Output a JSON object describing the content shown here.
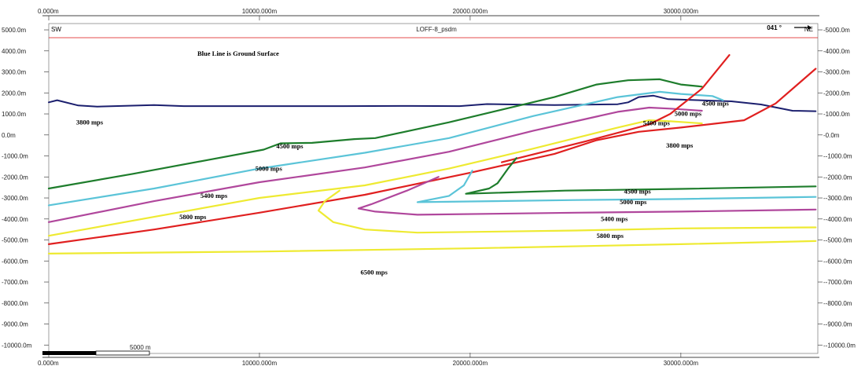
{
  "chart_data": {
    "type": "line",
    "title": "LOFF-8_psdm",
    "left_direction": "SW",
    "right_direction": "NE",
    "azimuth": "041 °",
    "note": "Blue Line is Ground Surface",
    "scalebar_label": "5000 m",
    "xlim": [
      0,
      36500
    ],
    "ylim": [
      -10400,
      5300
    ],
    "x_ticks": [
      {
        "value": 0,
        "label": "0.000m"
      },
      {
        "value": 10000,
        "label": "10000.000m"
      },
      {
        "value": 20000,
        "label": "20000.000m"
      },
      {
        "value": 30000,
        "label": "30000.000m"
      }
    ],
    "y_ticks_left": [
      {
        "value": 5000,
        "label": "5000.0m"
      },
      {
        "value": 4000,
        "label": "4000.0m"
      },
      {
        "value": 3000,
        "label": "3000.0m"
      },
      {
        "value": 2000,
        "label": "2000.0m"
      },
      {
        "value": 1000,
        "label": "1000.0m"
      },
      {
        "value": 0,
        "label": "0.0m"
      },
      {
        "value": -1000,
        "label": "-1000.0m"
      },
      {
        "value": -2000,
        "label": "-2000.0m"
      },
      {
        "value": -3000,
        "label": "-3000.0m"
      },
      {
        "value": -4000,
        "label": "-4000.0m"
      },
      {
        "value": -5000,
        "label": "-5000.0m"
      },
      {
        "value": -6000,
        "label": "-6000.0m"
      },
      {
        "value": -7000,
        "label": "-7000.0m"
      },
      {
        "value": -8000,
        "label": "-8000.0m"
      },
      {
        "value": -9000,
        "label": "-9000.0m"
      },
      {
        "value": -10000,
        "label": "-10000.0m"
      }
    ],
    "y_ticks_right": [
      {
        "value": 5000,
        "label": "-5000.0m"
      },
      {
        "value": 4000,
        "label": "-4000.0m"
      },
      {
        "value": 3000,
        "label": "-3000.0m"
      },
      {
        "value": 2000,
        "label": "-2000.0m"
      },
      {
        "value": 1000,
        "label": "-1000.0m"
      },
      {
        "value": 0,
        "label": "-0.0m"
      },
      {
        "value": -1000,
        "label": "--1000.0m"
      },
      {
        "value": -2000,
        "label": "--2000.0m"
      },
      {
        "value": -3000,
        "label": "--3000.0m"
      },
      {
        "value": -4000,
        "label": "--4000.0m"
      },
      {
        "value": -5000,
        "label": "--5000.0m"
      },
      {
        "value": -6000,
        "label": "--6000.0m"
      },
      {
        "value": -7000,
        "label": "--7000.0m"
      },
      {
        "value": -8000,
        "label": "--8000.0m"
      },
      {
        "value": -9000,
        "label": "--9000.0m"
      },
      {
        "value": -10000,
        "label": "--10000.0m"
      }
    ],
    "series": [
      {
        "key": "ground-surface",
        "color": "#1b1f6e",
        "points": [
          [
            0,
            1550
          ],
          [
            400,
            1650
          ],
          [
            1400,
            1400
          ],
          [
            2300,
            1350
          ],
          [
            5000,
            1420
          ],
          [
            6400,
            1370
          ],
          [
            10000,
            1370
          ],
          [
            14000,
            1370
          ],
          [
            17200,
            1380
          ],
          [
            19500,
            1370
          ],
          [
            20800,
            1470
          ],
          [
            24000,
            1420
          ],
          [
            27000,
            1460
          ],
          [
            27500,
            1550
          ],
          [
            28000,
            1800
          ],
          [
            28700,
            1870
          ],
          [
            29400,
            1700
          ],
          [
            32400,
            1600
          ],
          [
            33800,
            1450
          ],
          [
            35300,
            1150
          ],
          [
            36400,
            1130
          ]
        ]
      },
      {
        "key": "green-upper",
        "color": "#1e7d2c",
        "points": [
          [
            0,
            -2550
          ],
          [
            4000,
            -1850
          ],
          [
            7500,
            -1200
          ],
          [
            10200,
            -700
          ],
          [
            11000,
            -400
          ],
          [
            12500,
            -380
          ],
          [
            14500,
            -200
          ],
          [
            15500,
            -150
          ],
          [
            19000,
            600
          ],
          [
            24000,
            1800
          ],
          [
            26000,
            2400
          ],
          [
            27500,
            2600
          ],
          [
            29000,
            2650
          ],
          [
            30000,
            2400
          ],
          [
            31000,
            2300
          ]
        ]
      },
      {
        "key": "cyan-upper",
        "color": "#5bc4d8",
        "points": [
          [
            0,
            -3350
          ],
          [
            5000,
            -2550
          ],
          [
            10000,
            -1600
          ],
          [
            15000,
            -850
          ],
          [
            19000,
            -150
          ],
          [
            23000,
            900
          ],
          [
            27000,
            1800
          ],
          [
            29000,
            2050
          ],
          [
            30000,
            1950
          ],
          [
            31500,
            1850
          ],
          [
            32000,
            1650
          ]
        ]
      },
      {
        "key": "magenta-upper",
        "color": "#b0479c",
        "points": [
          [
            0,
            -4150
          ],
          [
            5000,
            -3150
          ],
          [
            10000,
            -2250
          ],
          [
            15000,
            -1550
          ],
          [
            19000,
            -800
          ],
          [
            23000,
            200
          ],
          [
            27000,
            1100
          ],
          [
            28500,
            1300
          ],
          [
            29500,
            1250
          ],
          [
            31000,
            1150
          ]
        ]
      },
      {
        "key": "yellow-upper",
        "color": "#eeea32",
        "points": [
          [
            0,
            -4800
          ],
          [
            5000,
            -3900
          ],
          [
            10000,
            -3000
          ],
          [
            15000,
            -2400
          ],
          [
            19000,
            -1600
          ],
          [
            23000,
            -650
          ],
          [
            27000,
            350
          ],
          [
            28500,
            700
          ],
          [
            29500,
            650
          ],
          [
            31000,
            550
          ]
        ]
      },
      {
        "key": "red-upper",
        "color": "#e02020",
        "points": [
          [
            0,
            -5200
          ],
          [
            5000,
            -4500
          ],
          [
            10000,
            -3700
          ],
          [
            15000,
            -2850
          ],
          [
            20000,
            -1800
          ],
          [
            24000,
            -900
          ],
          [
            26000,
            -250
          ],
          [
            28000,
            150
          ],
          [
            30000,
            350
          ],
          [
            33000,
            700
          ],
          [
            34500,
            1500
          ],
          [
            36400,
            3150
          ]
        ]
      },
      {
        "key": "red-fault",
        "color": "#e02020",
        "points": [
          [
            21500,
            -1300
          ],
          [
            25500,
            -300
          ],
          [
            28500,
            500
          ],
          [
            29500,
            1000
          ],
          [
            31000,
            2200
          ],
          [
            32300,
            3800
          ]
        ]
      },
      {
        "key": "green-lower",
        "color": "#1e7d2c",
        "points": [
          [
            22200,
            -1100
          ],
          [
            21800,
            -1600
          ],
          [
            21300,
            -2300
          ],
          [
            20900,
            -2550
          ],
          [
            19800,
            -2800
          ],
          [
            24500,
            -2650
          ],
          [
            30000,
            -2570
          ],
          [
            36400,
            -2450
          ]
        ]
      },
      {
        "key": "cyan-lower",
        "color": "#5bc4d8",
        "points": [
          [
            20100,
            -1700
          ],
          [
            19700,
            -2400
          ],
          [
            19000,
            -2900
          ],
          [
            17500,
            -3200
          ],
          [
            25000,
            -3100
          ],
          [
            30000,
            -3050
          ],
          [
            36400,
            -2950
          ]
        ]
      },
      {
        "key": "magenta-lower",
        "color": "#b0479c",
        "points": [
          [
            18500,
            -2000
          ],
          [
            17000,
            -2650
          ],
          [
            15300,
            -3300
          ],
          [
            14700,
            -3500
          ],
          [
            15500,
            -3650
          ],
          [
            17500,
            -3800
          ],
          [
            25000,
            -3700
          ],
          [
            30000,
            -3650
          ],
          [
            36400,
            -3550
          ]
        ]
      },
      {
        "key": "yellow-lower",
        "color": "#eeea32",
        "points": [
          [
            13800,
            -2650
          ],
          [
            13100,
            -3150
          ],
          [
            12800,
            -3600
          ],
          [
            13500,
            -4150
          ],
          [
            15000,
            -4500
          ],
          [
            17500,
            -4650
          ],
          [
            25000,
            -4550
          ],
          [
            30000,
            -4450
          ],
          [
            36400,
            -4400
          ]
        ]
      },
      {
        "key": "yellow-6500",
        "color": "#eeea32",
        "points": [
          [
            0,
            -5650
          ],
          [
            10000,
            -5550
          ],
          [
            20000,
            -5400
          ],
          [
            30000,
            -5200
          ],
          [
            36400,
            -5050
          ]
        ]
      }
    ],
    "annotations": [
      {
        "text": "3800 mps",
        "x": 1300,
        "y": 500
      },
      {
        "text": "4500 mps",
        "x": 10800,
        "y": -650
      },
      {
        "text": "5000 mps",
        "x": 9800,
        "y": -1700
      },
      {
        "text": "5400 mps",
        "x": 7200,
        "y": -3000
      },
      {
        "text": "5800 mps",
        "x": 6200,
        "y": -4000
      },
      {
        "text": "6500 mps",
        "x": 14800,
        "y": -6650
      },
      {
        "text": "4500 mps",
        "x": 31000,
        "y": 1400
      },
      {
        "text": "5000 mps",
        "x": 29700,
        "y": 900
      },
      {
        "text": "5400 mps",
        "x": 28200,
        "y": 450
      },
      {
        "text": "3800 mps",
        "x": 29300,
        "y": -600
      },
      {
        "text": "4500 mps",
        "x": 27300,
        "y": -2800
      },
      {
        "text": "5000 mps",
        "x": 27100,
        "y": -3300
      },
      {
        "text": "5400 mps",
        "x": 26200,
        "y": -4100
      },
      {
        "text": "5800 mps",
        "x": 26000,
        "y": -4900
      }
    ]
  }
}
